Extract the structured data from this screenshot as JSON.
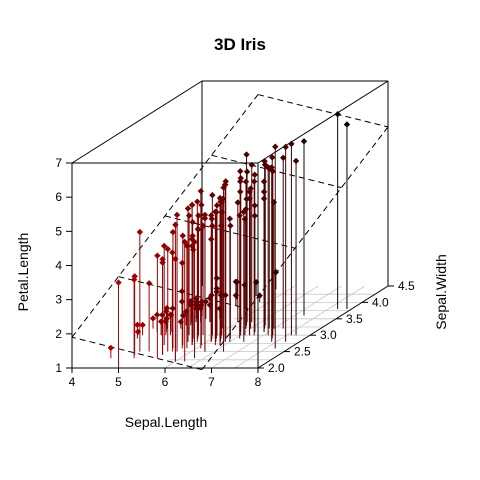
{
  "chart_data": {
    "type": "scatter",
    "title": "3D Iris",
    "xlabel": "Sepal.Length",
    "ylabel": "Sepal.Width",
    "zlabel": "Petal.Length",
    "xlim": [
      4,
      8
    ],
    "ylim": [
      2.0,
      4.5
    ],
    "zlim": [
      1,
      7
    ],
    "x_ticks": [
      "4",
      "5",
      "6",
      "7",
      "8"
    ],
    "y_ticks": [
      "2.0",
      "2.5",
      "3.0",
      "3.5",
      "4.0",
      "4.5"
    ],
    "z_ticks": [
      "1",
      "2",
      "3",
      "4",
      "5",
      "6",
      "7"
    ],
    "grid": "floor",
    "drop_lines": true,
    "regression_plane": "dashed",
    "colors": {
      "near": "#cc0000",
      "far": "#000000"
    },
    "points": [
      [
        5.1,
        3.5,
        1.4
      ],
      [
        4.9,
        3.0,
        1.4
      ],
      [
        4.7,
        3.2,
        1.3
      ],
      [
        4.6,
        3.1,
        1.5
      ],
      [
        5.0,
        3.6,
        1.4
      ],
      [
        5.4,
        3.9,
        1.7
      ],
      [
        4.6,
        3.4,
        1.4
      ],
      [
        5.0,
        3.4,
        1.5
      ],
      [
        4.4,
        2.9,
        1.4
      ],
      [
        4.9,
        3.1,
        1.5
      ],
      [
        5.4,
        3.7,
        1.5
      ],
      [
        4.8,
        3.4,
        1.6
      ],
      [
        4.8,
        3.0,
        1.4
      ],
      [
        4.3,
        3.0,
        1.1
      ],
      [
        5.8,
        4.0,
        1.2
      ],
      [
        5.7,
        4.4,
        1.5
      ],
      [
        5.4,
        3.9,
        1.3
      ],
      [
        5.1,
        3.5,
        1.4
      ],
      [
        5.7,
        3.8,
        1.7
      ],
      [
        5.1,
        3.8,
        1.5
      ],
      [
        5.4,
        3.4,
        1.7
      ],
      [
        5.1,
        3.7,
        1.5
      ],
      [
        4.6,
        3.6,
        1.0
      ],
      [
        5.1,
        3.3,
        1.7
      ],
      [
        4.8,
        3.4,
        1.9
      ],
      [
        5.0,
        3.0,
        1.6
      ],
      [
        5.0,
        3.4,
        1.6
      ],
      [
        5.2,
        3.5,
        1.5
      ],
      [
        5.2,
        3.4,
        1.4
      ],
      [
        4.7,
        3.2,
        1.6
      ],
      [
        4.8,
        3.1,
        1.6
      ],
      [
        5.4,
        3.4,
        1.5
      ],
      [
        5.2,
        4.1,
        1.5
      ],
      [
        5.5,
        4.2,
        1.4
      ],
      [
        4.9,
        3.1,
        1.5
      ],
      [
        5.0,
        3.2,
        1.2
      ],
      [
        5.5,
        3.5,
        1.3
      ],
      [
        4.9,
        3.6,
        1.4
      ],
      [
        4.4,
        3.0,
        1.3
      ],
      [
        5.1,
        3.4,
        1.5
      ],
      [
        5.0,
        3.5,
        1.3
      ],
      [
        4.5,
        2.3,
        1.3
      ],
      [
        4.4,
        3.2,
        1.3
      ],
      [
        5.0,
        3.5,
        1.6
      ],
      [
        5.1,
        3.8,
        1.9
      ],
      [
        4.8,
        3.0,
        1.4
      ],
      [
        5.1,
        3.8,
        1.6
      ],
      [
        4.6,
        3.2,
        1.4
      ],
      [
        5.3,
        3.7,
        1.5
      ],
      [
        5.0,
        3.3,
        1.4
      ],
      [
        7.0,
        3.2,
        4.7
      ],
      [
        6.4,
        3.2,
        4.5
      ],
      [
        6.9,
        3.1,
        4.9
      ],
      [
        5.5,
        2.3,
        4.0
      ],
      [
        6.5,
        2.8,
        4.6
      ],
      [
        5.7,
        2.8,
        4.5
      ],
      [
        6.3,
        3.3,
        4.7
      ],
      [
        4.9,
        2.4,
        3.3
      ],
      [
        6.6,
        2.9,
        4.6
      ],
      [
        5.2,
        2.7,
        3.9
      ],
      [
        5.0,
        2.0,
        3.5
      ],
      [
        5.9,
        3.0,
        4.2
      ],
      [
        6.0,
        2.2,
        4.0
      ],
      [
        6.1,
        2.9,
        4.7
      ],
      [
        5.6,
        2.9,
        3.6
      ],
      [
        6.7,
        3.1,
        4.4
      ],
      [
        5.6,
        3.0,
        4.5
      ],
      [
        5.8,
        2.7,
        4.1
      ],
      [
        6.2,
        2.2,
        4.5
      ],
      [
        5.6,
        2.5,
        3.9
      ],
      [
        5.9,
        3.2,
        4.8
      ],
      [
        6.1,
        2.8,
        4.0
      ],
      [
        6.3,
        2.5,
        4.9
      ],
      [
        6.1,
        2.8,
        4.7
      ],
      [
        6.4,
        2.9,
        4.3
      ],
      [
        6.6,
        3.0,
        4.4
      ],
      [
        6.8,
        2.8,
        4.8
      ],
      [
        6.7,
        3.0,
        5.0
      ],
      [
        6.0,
        2.9,
        4.5
      ],
      [
        5.7,
        2.6,
        3.5
      ],
      [
        5.5,
        2.4,
        3.8
      ],
      [
        5.5,
        2.4,
        3.7
      ],
      [
        5.8,
        2.7,
        3.9
      ],
      [
        6.0,
        2.7,
        5.1
      ],
      [
        5.4,
        3.0,
        4.5
      ],
      [
        6.0,
        3.4,
        4.5
      ],
      [
        6.7,
        3.1,
        4.7
      ],
      [
        6.3,
        2.3,
        4.4
      ],
      [
        5.6,
        3.0,
        4.1
      ],
      [
        5.5,
        2.5,
        4.0
      ],
      [
        5.5,
        2.6,
        4.4
      ],
      [
        6.1,
        3.0,
        4.6
      ],
      [
        5.8,
        2.6,
        4.0
      ],
      [
        5.0,
        2.3,
        3.3
      ],
      [
        5.6,
        2.7,
        4.2
      ],
      [
        5.7,
        3.0,
        4.2
      ],
      [
        5.7,
        2.9,
        4.2
      ],
      [
        6.2,
        2.9,
        4.3
      ],
      [
        5.1,
        2.5,
        3.0
      ],
      [
        5.7,
        2.8,
        4.1
      ],
      [
        6.3,
        3.3,
        6.0
      ],
      [
        5.8,
        2.7,
        5.1
      ],
      [
        7.1,
        3.0,
        5.9
      ],
      [
        6.3,
        2.9,
        5.6
      ],
      [
        6.5,
        3.0,
        5.8
      ],
      [
        7.6,
        3.0,
        6.6
      ],
      [
        4.9,
        2.5,
        4.5
      ],
      [
        7.3,
        2.9,
        6.3
      ],
      [
        6.7,
        2.5,
        5.8
      ],
      [
        7.2,
        3.6,
        6.1
      ],
      [
        6.5,
        3.2,
        5.1
      ],
      [
        6.4,
        2.7,
        5.3
      ],
      [
        6.8,
        3.0,
        5.5
      ],
      [
        5.7,
        2.5,
        5.0
      ],
      [
        5.8,
        2.8,
        5.1
      ],
      [
        6.4,
        3.2,
        5.3
      ],
      [
        6.5,
        3.0,
        5.5
      ],
      [
        7.7,
        3.8,
        6.7
      ],
      [
        7.7,
        2.6,
        6.9
      ],
      [
        6.0,
        2.2,
        5.0
      ],
      [
        6.9,
        3.2,
        5.7
      ],
      [
        5.6,
        2.8,
        4.9
      ],
      [
        7.7,
        2.8,
        6.7
      ],
      [
        6.3,
        2.7,
        4.9
      ],
      [
        6.7,
        3.3,
        5.7
      ],
      [
        7.2,
        3.2,
        6.0
      ],
      [
        6.2,
        2.8,
        4.8
      ],
      [
        6.1,
        3.0,
        4.9
      ],
      [
        6.4,
        2.8,
        5.6
      ],
      [
        7.2,
        3.0,
        5.8
      ],
      [
        7.4,
        2.8,
        6.1
      ],
      [
        7.9,
        3.8,
        6.4
      ],
      [
        6.4,
        2.8,
        5.6
      ],
      [
        6.3,
        2.8,
        5.1
      ],
      [
        6.1,
        2.6,
        5.6
      ],
      [
        7.7,
        3.0,
        6.1
      ],
      [
        6.3,
        3.4,
        5.6
      ],
      [
        6.4,
        3.1,
        5.5
      ],
      [
        6.0,
        3.0,
        4.8
      ],
      [
        6.9,
        3.1,
        5.4
      ],
      [
        6.7,
        3.1,
        5.6
      ],
      [
        6.9,
        3.1,
        5.1
      ],
      [
        5.8,
        2.7,
        5.1
      ],
      [
        6.8,
        3.2,
        5.9
      ],
      [
        6.7,
        3.3,
        5.7
      ],
      [
        6.7,
        3.0,
        5.2
      ],
      [
        6.3,
        2.5,
        5.0
      ],
      [
        6.5,
        3.0,
        5.2
      ],
      [
        6.2,
        3.4,
        5.4
      ],
      [
        5.9,
        3.0,
        5.1
      ]
    ]
  }
}
